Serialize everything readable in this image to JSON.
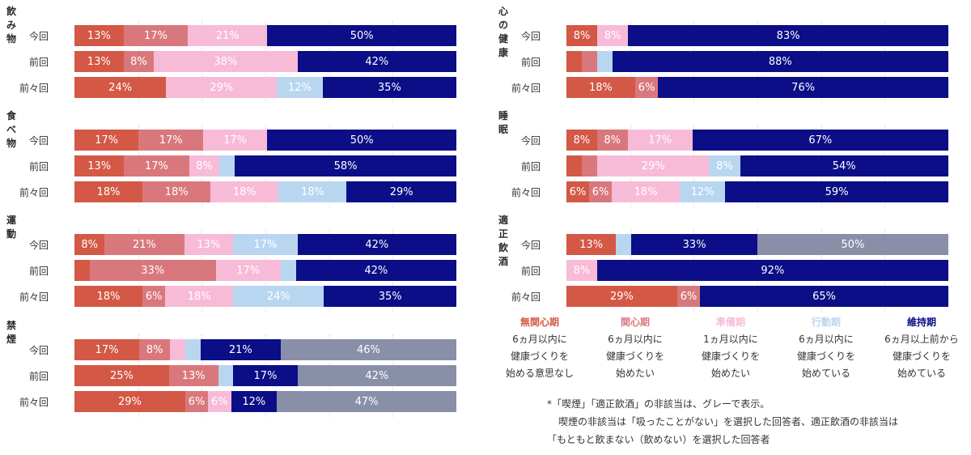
{
  "colors": {
    "無関心期": "#D35845",
    "関心期": "#D9787C",
    "準備期": "#F7BBD8",
    "行動期": "#B9D6F1",
    "維持期": "#0B0E86",
    "非該当": "#8A8FA8"
  },
  "chart_data": [
    {
      "type": "bar",
      "title": "飲み物",
      "categories": [
        "今回",
        "前回",
        "前々回"
      ],
      "series": [
        {
          "name": "無関心期",
          "values": [
            13,
            13,
            24
          ]
        },
        {
          "name": "関心期",
          "values": [
            17,
            8,
            0
          ]
        },
        {
          "name": "準備期",
          "values": [
            21,
            38,
            29
          ]
        },
        {
          "name": "行動期",
          "values": [
            0,
            0,
            12
          ]
        },
        {
          "name": "維持期",
          "values": [
            50,
            42,
            35
          ]
        }
      ]
    },
    {
      "type": "bar",
      "title": "食べ物",
      "categories": [
        "今回",
        "前回",
        "前々回"
      ],
      "series": [
        {
          "name": "無関心期",
          "values": [
            17,
            13,
            18
          ]
        },
        {
          "name": "関心期",
          "values": [
            17,
            17,
            18
          ]
        },
        {
          "name": "準備期",
          "values": [
            17,
            8,
            18
          ]
        },
        {
          "name": "行動期",
          "values": [
            0,
            4,
            18
          ]
        },
        {
          "name": "維持期",
          "values": [
            50,
            58,
            29
          ]
        }
      ]
    },
    {
      "type": "bar",
      "title": "運動",
      "categories": [
        "今回",
        "前回",
        "前々回"
      ],
      "series": [
        {
          "name": "無関心期",
          "values": [
            8,
            4,
            18
          ]
        },
        {
          "name": "関心期",
          "values": [
            21,
            33,
            6
          ]
        },
        {
          "name": "準備期",
          "values": [
            13,
            17,
            18
          ]
        },
        {
          "name": "行動期",
          "values": [
            17,
            4,
            24
          ]
        },
        {
          "name": "維持期",
          "values": [
            42,
            42,
            35
          ]
        }
      ]
    },
    {
      "type": "bar",
      "title": "禁煙",
      "categories": [
        "今回",
        "前回",
        "前々回"
      ],
      "series": [
        {
          "name": "無関心期",
          "values": [
            17,
            25,
            29
          ]
        },
        {
          "name": "関心期",
          "values": [
            8,
            13,
            6
          ]
        },
        {
          "name": "準備期",
          "values": [
            4,
            0,
            6
          ]
        },
        {
          "name": "行動期",
          "values": [
            4,
            4,
            0
          ]
        },
        {
          "name": "維持期",
          "values": [
            21,
            17,
            12
          ]
        },
        {
          "name": "非該当",
          "values": [
            46,
            42,
            47
          ]
        }
      ]
    },
    {
      "type": "bar",
      "title": "心の健康",
      "categories": [
        "今回",
        "前回",
        "前々回"
      ],
      "series": [
        {
          "name": "無関心期",
          "values": [
            8,
            4,
            18
          ]
        },
        {
          "name": "関心期",
          "values": [
            0,
            4,
            6
          ]
        },
        {
          "name": "準備期",
          "values": [
            8,
            0,
            0
          ]
        },
        {
          "name": "行動期",
          "values": [
            0,
            4,
            0
          ]
        },
        {
          "name": "維持期",
          "values": [
            83,
            88,
            76
          ]
        }
      ]
    },
    {
      "type": "bar",
      "title": "睡眠",
      "categories": [
        "今回",
        "前回",
        "前々回"
      ],
      "series": [
        {
          "name": "無関心期",
          "values": [
            8,
            4,
            6
          ]
        },
        {
          "name": "関心期",
          "values": [
            8,
            4,
            6
          ]
        },
        {
          "name": "準備期",
          "values": [
            17,
            29,
            18
          ]
        },
        {
          "name": "行動期",
          "values": [
            0,
            8,
            12
          ]
        },
        {
          "name": "維持期",
          "values": [
            67,
            54,
            59
          ]
        }
      ]
    },
    {
      "type": "bar",
      "title": "適正飲酒",
      "categories": [
        "今回",
        "前回",
        "前々回"
      ],
      "series": [
        {
          "name": "無関心期",
          "values": [
            13,
            0,
            29
          ]
        },
        {
          "name": "関心期",
          "values": [
            0,
            0,
            6
          ]
        },
        {
          "name": "準備期",
          "values": [
            0,
            8,
            0
          ]
        },
        {
          "name": "行動期",
          "values": [
            4,
            0,
            0
          ]
        },
        {
          "name": "維持期",
          "values": [
            33,
            92,
            65
          ]
        },
        {
          "name": "非該当",
          "values": [
            50,
            0,
            0
          ]
        }
      ]
    }
  ],
  "legend": [
    {
      "name": "無関心期",
      "color": "#D35845",
      "lines": [
        "6ヵ月以内に",
        "健康づくりを",
        "始める意思なし"
      ]
    },
    {
      "name": "関心期",
      "color": "#D9787C",
      "lines": [
        "6ヵ月以内に",
        "健康づくりを",
        "始めたい"
      ]
    },
    {
      "name": "準備期",
      "color": "#F7BBD8",
      "lines": [
        "1ヵ月以内に",
        "健康づくりを",
        "始めたい"
      ]
    },
    {
      "name": "行動期",
      "color": "#B9D6F1",
      "lines": [
        "6ヵ月以内に",
        "健康づくりを",
        "始めている"
      ]
    },
    {
      "name": "維持期",
      "color": "#0B0E86",
      "lines": [
        "6ヵ月以上前から",
        "健康づくりを",
        "始めている"
      ]
    }
  ],
  "note": {
    "line1": "*「喫煙」「適正飲酒」の非該当は、グレーで表示。",
    "line2": "喫煙の非該当は「吸ったことがない」を選択した回答者、適正飲酒の非該当は",
    "line3": "「もともと飲まない（飲めない）を選択した回答者"
  }
}
